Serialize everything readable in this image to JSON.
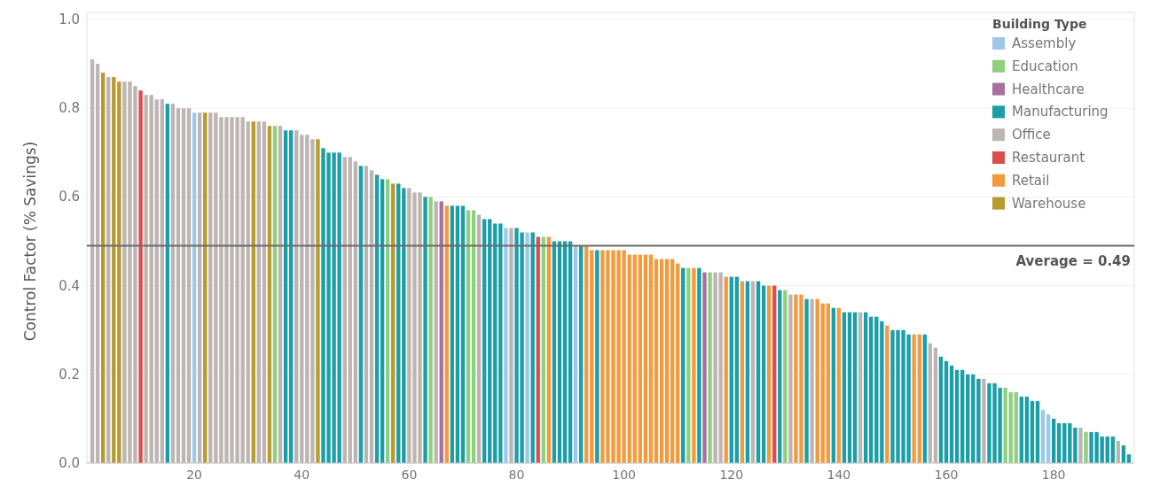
{
  "chart_data": {
    "type": "bar",
    "ylabel": "Control Factor (% Savings)",
    "legend_title": "Building Type",
    "legend": "top right",
    "grid": "y",
    "xlim": [
      0,
      195
    ],
    "xticks": [
      20,
      40,
      60,
      80,
      100,
      120,
      140,
      160,
      180
    ],
    "ylim": [
      0,
      1
    ],
    "yticks": [
      {
        "value": 0,
        "label": "0.0"
      },
      0.2,
      0.4,
      0.6,
      0.8,
      {
        "value": 1,
        "label": "1.0"
      }
    ],
    "ref_lines": [
      {
        "axis": "y",
        "value": 0.49,
        "label": "Average = 0.49",
        "color": "#6b6b6b"
      }
    ],
    "series": [
      {
        "name": "Assembly",
        "color": "#9dc9e8",
        "x": [
          20,
          78,
          82,
          91,
          178,
          179
        ],
        "values": [
          0.79,
          0.53,
          0.52,
          0.49,
          0.12,
          0.11
        ]
      },
      {
        "name": "Education",
        "color": "#8fd07e",
        "x": [
          35,
          56,
          64,
          71,
          72,
          85,
          112,
          116,
          130,
          171,
          172,
          173,
          186
        ],
        "values": [
          0.76,
          0.64,
          0.6,
          0.57,
          0.57,
          0.51,
          0.44,
          0.43,
          0.39,
          0.17,
          0.16,
          0.16,
          0.07
        ]
      },
      {
        "name": "Healthcare",
        "color": "#a8709e",
        "x": [
          66,
          115
        ],
        "values": [
          0.59,
          0.43
        ]
      },
      {
        "name": "Manufacturing",
        "color": "#1a9ea8",
        "x": [
          15,
          37,
          38,
          44,
          45,
          46,
          47,
          51,
          54,
          55,
          58,
          59,
          63,
          68,
          69,
          70,
          74,
          75,
          76,
          77,
          80,
          81,
          83,
          87,
          88,
          89,
          90,
          92,
          95,
          111,
          114,
          120,
          121,
          123,
          125,
          126,
          129,
          134,
          139,
          141,
          142,
          143,
          145,
          146,
          147,
          148,
          150,
          151,
          152,
          153,
          156,
          159,
          160,
          161,
          162,
          163,
          164,
          165,
          166,
          168,
          169,
          170,
          174,
          175,
          176,
          177,
          180,
          181,
          182,
          183,
          184,
          187,
          188,
          189,
          190,
          191,
          193,
          194
        ],
        "values": [
          0.81,
          0.75,
          0.75,
          0.71,
          0.7,
          0.7,
          0.7,
          0.67,
          0.65,
          0.64,
          0.63,
          0.62,
          0.6,
          0.58,
          0.58,
          0.58,
          0.55,
          0.55,
          0.54,
          0.54,
          0.53,
          0.52,
          0.52,
          0.5,
          0.5,
          0.5,
          0.5,
          0.49,
          0.48,
          0.44,
          0.44,
          0.42,
          0.42,
          0.41,
          0.41,
          0.4,
          0.39,
          0.37,
          0.35,
          0.34,
          0.34,
          0.34,
          0.34,
          0.33,
          0.33,
          0.32,
          0.3,
          0.3,
          0.3,
          0.29,
          0.29,
          0.24,
          0.23,
          0.22,
          0.21,
          0.21,
          0.2,
          0.2,
          0.19,
          0.18,
          0.18,
          0.17,
          0.15,
          0.15,
          0.14,
          0.14,
          0.1,
          0.09,
          0.09,
          0.09,
          0.08,
          0.07,
          0.07,
          0.06,
          0.06,
          0.06,
          0.04,
          0.02
        ]
      },
      {
        "name": "Office",
        "color": "#bdb5b3",
        "x": [
          1,
          2,
          4,
          7,
          8,
          9,
          11,
          12,
          13,
          14,
          16,
          17,
          18,
          19,
          21,
          23,
          24,
          25,
          26,
          27,
          28,
          29,
          30,
          32,
          33,
          36,
          39,
          40,
          41,
          42,
          48,
          49,
          50,
          52,
          53,
          60,
          61,
          62,
          65,
          73,
          79,
          117,
          118,
          124,
          131,
          135,
          144,
          157,
          158,
          167,
          185,
          192
        ],
        "values": [
          0.91,
          0.9,
          0.87,
          0.86,
          0.86,
          0.85,
          0.83,
          0.83,
          0.82,
          0.82,
          0.81,
          0.8,
          0.8,
          0.8,
          0.79,
          0.79,
          0.79,
          0.78,
          0.78,
          0.78,
          0.78,
          0.78,
          0.77,
          0.77,
          0.77,
          0.76,
          0.75,
          0.74,
          0.74,
          0.73,
          0.69,
          0.69,
          0.68,
          0.67,
          0.66,
          0.62,
          0.61,
          0.61,
          0.59,
          0.56,
          0.53,
          0.43,
          0.43,
          0.41,
          0.38,
          0.37,
          0.34,
          0.27,
          0.26,
          0.19,
          0.08,
          0.05
        ]
      },
      {
        "name": "Restaurant",
        "color": "#dd4d4d",
        "x": [
          10,
          84,
          128
        ],
        "values": [
          0.84,
          0.51,
          0.4
        ]
      },
      {
        "name": "Retail",
        "color": "#f39a3c",
        "x": [
          67,
          86,
          93,
          94,
          96,
          97,
          98,
          99,
          100,
          101,
          102,
          103,
          104,
          105,
          106,
          107,
          108,
          109,
          110,
          113,
          119,
          122,
          127,
          132,
          133,
          136,
          137,
          138,
          140,
          149,
          154,
          155
        ],
        "values": [
          0.58,
          0.51,
          0.49,
          0.48,
          0.48,
          0.48,
          0.48,
          0.48,
          0.48,
          0.47,
          0.47,
          0.47,
          0.47,
          0.47,
          0.46,
          0.46,
          0.46,
          0.46,
          0.45,
          0.44,
          0.42,
          0.41,
          0.4,
          0.38,
          0.38,
          0.37,
          0.36,
          0.36,
          0.35,
          0.31,
          0.29,
          0.29
        ]
      },
      {
        "name": "Warehouse",
        "color": "#b89a2e",
        "x": [
          3,
          5,
          6,
          22,
          31,
          34,
          43,
          57
        ],
        "values": [
          0.88,
          0.87,
          0.86,
          0.79,
          0.77,
          0.76,
          0.73,
          0.63
        ]
      }
    ]
  }
}
